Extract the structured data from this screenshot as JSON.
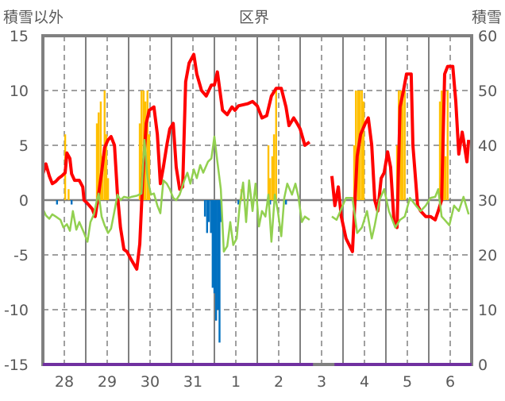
{
  "chart_data": {
    "type": "line",
    "title": "区界",
    "ylabel_left": "積雪以外",
    "ylabel_right": "積雪",
    "ylim_left": [
      -15,
      15
    ],
    "ylim_right": [
      0,
      60
    ],
    "yticks_left": [
      "15",
      "10",
      "5",
      "0",
      "-5",
      "-10",
      "-15"
    ],
    "yticks_right": [
      "60",
      "50",
      "40",
      "30",
      "20",
      "10",
      "0"
    ],
    "x_unit": "days since 28th 00:00",
    "xlim": [
      0,
      10
    ],
    "xtick_labels": [
      "28",
      "29",
      "30",
      "31",
      "1",
      "2",
      "3",
      "4",
      "5",
      "6"
    ],
    "grid": true,
    "colors": {
      "red": "#ff0000",
      "green": "#92d050",
      "orange": "#ffc000",
      "blue": "#0070c0",
      "purple": "#7030a0",
      "axis": "#808080"
    },
    "series": [
      {
        "name": "red-series",
        "color": "#ff0000",
        "axis": "left",
        "points": [
          [
            0,
            2.4
          ],
          [
            0.07,
            3.3
          ],
          [
            0.15,
            2.2
          ],
          [
            0.22,
            1.5
          ],
          [
            0.3,
            1.7
          ],
          [
            0.37,
            2.0
          ],
          [
            0.44,
            2.2
          ],
          [
            0.52,
            2.5
          ],
          [
            0.56,
            4.3
          ],
          [
            0.63,
            3.8
          ],
          [
            0.67,
            2.4
          ],
          [
            0.74,
            1.8
          ],
          [
            0.85,
            1.8
          ],
          [
            0.93,
            1.2
          ],
          [
            0.96,
            0.0
          ],
          [
            1.04,
            -0.3
          ],
          [
            1.15,
            -0.8
          ],
          [
            1.22,
            -1.5
          ],
          [
            1.28,
            0
          ],
          [
            1.37,
            2.5
          ],
          [
            1.44,
            4.8
          ],
          [
            1.52,
            5.5
          ],
          [
            1.59,
            5.8
          ],
          [
            1.67,
            5.0
          ],
          [
            1.74,
            0.5
          ],
          [
            1.81,
            -2.5
          ],
          [
            1.89,
            -4.5
          ],
          [
            1.96,
            -4.7
          ],
          [
            2.07,
            -5.5
          ],
          [
            2.19,
            -6.3
          ],
          [
            2.26,
            -4
          ],
          [
            2.33,
            2
          ],
          [
            2.41,
            7
          ],
          [
            2.48,
            8.2
          ],
          [
            2.59,
            8.5
          ],
          [
            2.67,
            6
          ],
          [
            2.74,
            1.5
          ],
          [
            2.81,
            3
          ],
          [
            2.89,
            5
          ],
          [
            2.96,
            6.5
          ],
          [
            3.04,
            7
          ],
          [
            3.11,
            3
          ],
          [
            3.19,
            1
          ],
          [
            3.26,
            1.2
          ],
          [
            3.33,
            10.8
          ],
          [
            3.41,
            12.5
          ],
          [
            3.52,
            13.3
          ],
          [
            3.59,
            11.5
          ],
          [
            3.7,
            10
          ],
          [
            3.81,
            9.5
          ],
          [
            3.93,
            10.5
          ],
          [
            4.0,
            10.5
          ],
          [
            4.07,
            11.7
          ],
          [
            4.19,
            8.2
          ],
          [
            4.3,
            7.8
          ],
          [
            4.41,
            8.5
          ],
          [
            4.48,
            8.2
          ],
          [
            4.56,
            8.6
          ],
          [
            4.67,
            8.7
          ],
          [
            4.78,
            8.8
          ],
          [
            4.89,
            9
          ],
          [
            5.0,
            8.6
          ],
          [
            5.11,
            7.5
          ],
          [
            5.22,
            7.7
          ],
          [
            5.33,
            9.5
          ],
          [
            5.44,
            10.2
          ],
          [
            5.56,
            10.2
          ],
          [
            5.67,
            8.5
          ],
          [
            5.74,
            6.8
          ],
          [
            5.85,
            7.5
          ],
          [
            5.93,
            7
          ],
          [
            6.0,
            6.5
          ],
          [
            6.11,
            5
          ],
          [
            6.22,
            5.3
          ],
          [
            6.5,
            null
          ],
          [
            6.74,
            2.2
          ],
          [
            6.81,
            -0.5
          ],
          [
            6.89,
            1.2
          ],
          [
            6.96,
            -1.5
          ],
          [
            7.07,
            -3.5
          ],
          [
            7.22,
            -4.7
          ],
          [
            7.33,
            4
          ],
          [
            7.41,
            6
          ],
          [
            7.52,
            7
          ],
          [
            7.59,
            7.5
          ],
          [
            7.67,
            5
          ],
          [
            7.74,
            0
          ],
          [
            7.81,
            -1
          ],
          [
            7.89,
            2
          ],
          [
            7.96,
            2.5
          ],
          [
            8.04,
            4.4
          ],
          [
            8.11,
            3
          ],
          [
            8.19,
            -2
          ],
          [
            8.26,
            -2.5
          ],
          [
            8.33,
            8.5
          ],
          [
            8.41,
            10
          ],
          [
            8.48,
            11.5
          ],
          [
            8.59,
            11.5
          ],
          [
            8.63,
            5
          ],
          [
            8.74,
            -0.5
          ],
          [
            8.81,
            -1
          ],
          [
            8.93,
            -1.5
          ],
          [
            9.04,
            -1.5
          ],
          [
            9.15,
            -1.8
          ],
          [
            9.22,
            -1
          ],
          [
            9.3,
            0
          ],
          [
            9.37,
            11.5
          ],
          [
            9.44,
            12.2
          ],
          [
            9.56,
            12.2
          ],
          [
            9.63,
            9
          ],
          [
            9.7,
            4.2
          ],
          [
            9.78,
            6.2
          ],
          [
            9.81,
            5.5
          ],
          [
            9.89,
            3.5
          ],
          [
            9.93,
            5.5
          ]
        ]
      },
      {
        "name": "green-series",
        "color": "#92d050",
        "axis": "left",
        "points": [
          [
            0,
            -0.8
          ],
          [
            0.07,
            -1.4
          ],
          [
            0.15,
            -1.7
          ],
          [
            0.22,
            -1.3
          ],
          [
            0.3,
            -1.5
          ],
          [
            0.41,
            -1.8
          ],
          [
            0.48,
            -2.5
          ],
          [
            0.56,
            -2.2
          ],
          [
            0.63,
            -2.8
          ],
          [
            0.7,
            -1.0
          ],
          [
            0.78,
            -2.7
          ],
          [
            0.85,
            -2.0
          ],
          [
            0.96,
            -3.0
          ],
          [
            1.04,
            -3.8
          ],
          [
            1.11,
            -2.0
          ],
          [
            1.19,
            -1.3
          ],
          [
            1.26,
            0
          ],
          [
            1.3,
            0.6
          ],
          [
            1.37,
            -1.5
          ],
          [
            1.44,
            -2.3
          ],
          [
            1.52,
            -3.0
          ],
          [
            1.59,
            -2.6
          ],
          [
            1.67,
            -1.0
          ],
          [
            1.74,
            0.5
          ],
          [
            1.81,
            0
          ],
          [
            1.89,
            0.3
          ],
          [
            2.0,
            0.2
          ],
          [
            2.07,
            0.3
          ],
          [
            2.19,
            0.4
          ],
          [
            2.3,
            0.6
          ],
          [
            2.37,
            5.5
          ],
          [
            2.44,
            2
          ],
          [
            2.52,
            0.5
          ],
          [
            2.59,
            0.6
          ],
          [
            2.67,
            -0.5
          ],
          [
            2.74,
            -1.2
          ],
          [
            2.81,
            1.8
          ],
          [
            2.89,
            1.5
          ],
          [
            2.96,
            1.0
          ],
          [
            3.04,
            0.2
          ],
          [
            3.11,
            0
          ],
          [
            3.19,
            0.5
          ],
          [
            3.3,
            1.8
          ],
          [
            3.37,
            2.5
          ],
          [
            3.44,
            1.5
          ],
          [
            3.52,
            2.8
          ],
          [
            3.59,
            2
          ],
          [
            3.67,
            3.2
          ],
          [
            3.74,
            2.5
          ],
          [
            3.85,
            3.5
          ],
          [
            3.93,
            3.8
          ],
          [
            4.0,
            5.8
          ],
          [
            4.07,
            3.5
          ],
          [
            4.15,
            1
          ],
          [
            4.22,
            -4.7
          ],
          [
            4.3,
            -4.2
          ],
          [
            4.37,
            -2
          ],
          [
            4.44,
            -4.1
          ],
          [
            4.52,
            -3.5
          ],
          [
            4.59,
            -0.5
          ],
          [
            4.67,
            1.6
          ],
          [
            4.74,
            -2
          ],
          [
            4.81,
            1.8
          ],
          [
            4.89,
            -1
          ],
          [
            4.96,
            1.5
          ],
          [
            5.04,
            -2.4
          ],
          [
            5.11,
            -1
          ],
          [
            5.19,
            -1.5
          ],
          [
            5.26,
            0.5
          ],
          [
            5.33,
            -3.8
          ],
          [
            5.41,
            0.5
          ],
          [
            5.48,
            -1
          ],
          [
            5.56,
            -3.3
          ],
          [
            5.63,
            0.2
          ],
          [
            5.7,
            1.5
          ],
          [
            5.81,
            0.5
          ],
          [
            5.89,
            1.5
          ],
          [
            5.96,
            0.3
          ],
          [
            6.04,
            -2.0
          ],
          [
            6.11,
            -1.5
          ],
          [
            6.22,
            -1.8
          ],
          [
            6.5,
            null
          ],
          [
            6.74,
            -1.5
          ],
          [
            6.85,
            -1.8
          ],
          [
            6.96,
            -0.8
          ],
          [
            7.07,
            0.2
          ],
          [
            7.22,
            0.2
          ],
          [
            7.33,
            -3.0
          ],
          [
            7.44,
            -2.5
          ],
          [
            7.56,
            -1.0
          ],
          [
            7.67,
            -3.5
          ],
          [
            7.74,
            -2.3
          ],
          [
            7.85,
            0
          ],
          [
            7.96,
            1
          ],
          [
            8.07,
            -1
          ],
          [
            8.15,
            -1.8
          ],
          [
            8.22,
            -2.5
          ],
          [
            8.33,
            -1.8
          ],
          [
            8.44,
            -1.5
          ],
          [
            8.56,
            0.2
          ],
          [
            8.7,
            -0.5
          ],
          [
            8.81,
            -1
          ],
          [
            8.93,
            -0.5
          ],
          [
            9.04,
            0.2
          ],
          [
            9.15,
            0.3
          ],
          [
            9.22,
            1
          ],
          [
            9.3,
            -1.5
          ],
          [
            9.37,
            -1.8
          ],
          [
            9.48,
            -2.3
          ],
          [
            9.59,
            -0.5
          ],
          [
            9.7,
            -1
          ],
          [
            9.81,
            0.3
          ],
          [
            9.93,
            -1.3
          ]
        ]
      },
      {
        "name": "snow-depth",
        "color": "#7030a0",
        "axis": "right",
        "points": [
          [
            0,
            0
          ],
          [
            6.3,
            0
          ],
          [
            6.31,
            null
          ],
          [
            6.8,
            0
          ],
          [
            10,
            0
          ]
        ]
      }
    ],
    "bars": [
      {
        "name": "orange-bars",
        "color": "#ffc000",
        "axis": "left",
        "points": [
          [
            0.52,
            6
          ],
          [
            0.6,
            1
          ],
          [
            1.26,
            7
          ],
          [
            1.3,
            8
          ],
          [
            1.35,
            9
          ],
          [
            1.39,
            4
          ],
          [
            1.44,
            10
          ],
          [
            1.48,
            6
          ],
          [
            1.52,
            2
          ],
          [
            2.26,
            7
          ],
          [
            2.3,
            10
          ],
          [
            2.35,
            10
          ],
          [
            2.39,
            9
          ],
          [
            2.44,
            10
          ],
          [
            2.48,
            6
          ],
          [
            4.63,
            1
          ],
          [
            5.26,
            5
          ],
          [
            5.3,
            2
          ],
          [
            5.35,
            4
          ],
          [
            5.39,
            6
          ],
          [
            5.44,
            10
          ],
          [
            7.26,
            5
          ],
          [
            7.3,
            10
          ],
          [
            7.35,
            10
          ],
          [
            7.39,
            10
          ],
          [
            7.44,
            10
          ],
          [
            7.48,
            9
          ],
          [
            8.26,
            5
          ],
          [
            8.3,
            10
          ],
          [
            8.35,
            10
          ],
          [
            8.39,
            10
          ],
          [
            8.44,
            10
          ],
          [
            9.26,
            9
          ],
          [
            9.3,
            10
          ],
          [
            9.35,
            10
          ],
          [
            9.39,
            4
          ],
          [
            9.44,
            10
          ]
        ]
      },
      {
        "name": "blue-bars",
        "color": "#0070c0",
        "axis": "left",
        "points": [
          [
            0.33,
            -0.4
          ],
          [
            0.67,
            -0.4
          ],
          [
            1.0,
            -0.4
          ],
          [
            3.78,
            -1.5
          ],
          [
            3.83,
            -3
          ],
          [
            3.87,
            -2
          ],
          [
            3.92,
            -3
          ],
          [
            3.96,
            -8
          ],
          [
            4.0,
            -8.5
          ],
          [
            4.04,
            -11
          ],
          [
            4.08,
            -10
          ],
          [
            4.12,
            -13
          ],
          [
            4.16,
            -2
          ],
          [
            4.56,
            -0.4
          ],
          [
            5.3,
            -0.4
          ],
          [
            5.67,
            -0.4
          ]
        ]
      }
    ]
  }
}
